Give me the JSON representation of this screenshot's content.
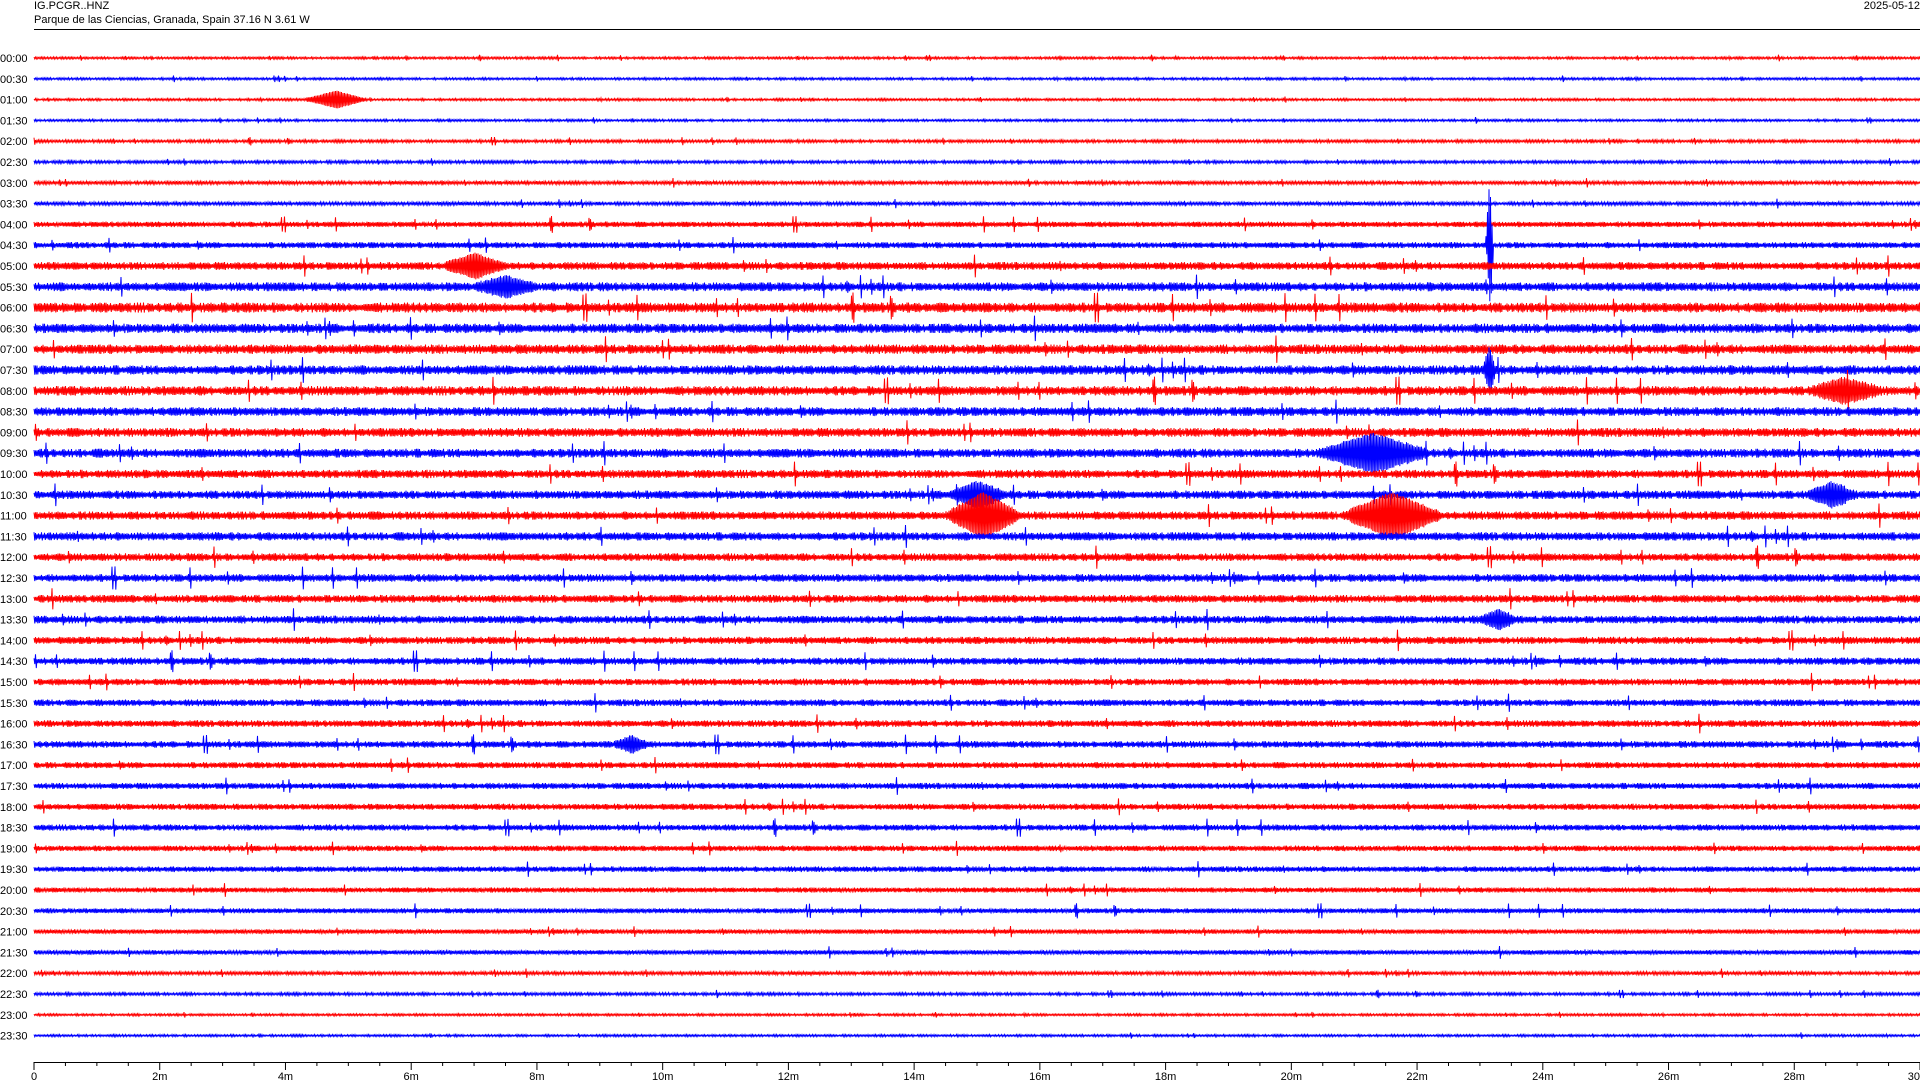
{
  "header": {
    "station": "IG.PCGR..HNZ",
    "location": "Parque de las Ciencias, Granada, Spain  37.16 N 3.61 W",
    "date": "2025-05-12"
  },
  "chart_data": {
    "type": "line",
    "title": "",
    "xlabel": "",
    "ylabel": "",
    "xlim": [
      0,
      30
    ],
    "x_ticks": [
      {
        "value": 0,
        "label": "0"
      },
      {
        "value": 2,
        "label": "2m"
      },
      {
        "value": 4,
        "label": "4m"
      },
      {
        "value": 6,
        "label": "6m"
      },
      {
        "value": 8,
        "label": "8m"
      },
      {
        "value": 10,
        "label": "10m"
      },
      {
        "value": 12,
        "label": "12m"
      },
      {
        "value": 14,
        "label": "14m"
      },
      {
        "value": 16,
        "label": "16m"
      },
      {
        "value": 18,
        "label": "18m"
      },
      {
        "value": 20,
        "label": "20m"
      },
      {
        "value": 22,
        "label": "22m"
      },
      {
        "value": 24,
        "label": "24m"
      },
      {
        "value": 26,
        "label": "26m"
      },
      {
        "value": 28,
        "label": "28m"
      },
      {
        "value": 30,
        "label": "30"
      }
    ],
    "colors": {
      "even_row": "#ff0000",
      "odd_row": "#0000ff"
    },
    "grid": false,
    "rows": [
      "00:00",
      "00:30",
      "01:00",
      "01:30",
      "02:00",
      "02:30",
      "03:00",
      "03:30",
      "04:00",
      "04:30",
      "05:00",
      "05:30",
      "06:00",
      "06:30",
      "07:00",
      "07:30",
      "08:00",
      "08:30",
      "09:00",
      "09:30",
      "10:00",
      "10:30",
      "11:00",
      "11:30",
      "12:00",
      "12:30",
      "13:00",
      "13:30",
      "14:00",
      "14:30",
      "15:00",
      "15:30",
      "16:00",
      "16:30",
      "17:00",
      "17:30",
      "18:00",
      "18:30",
      "19:00",
      "19:30",
      "20:00",
      "20:30",
      "21:00",
      "21:30",
      "22:00",
      "22:30",
      "23:00",
      "23:30"
    ],
    "noise_level": [
      0.2,
      0.2,
      0.2,
      0.2,
      0.25,
      0.25,
      0.3,
      0.3,
      0.5,
      0.55,
      0.7,
      0.8,
      0.9,
      0.85,
      0.85,
      0.85,
      0.85,
      0.8,
      0.8,
      0.8,
      0.75,
      0.75,
      0.75,
      0.75,
      0.7,
      0.7,
      0.7,
      0.7,
      0.65,
      0.65,
      0.6,
      0.6,
      0.6,
      0.6,
      0.55,
      0.55,
      0.55,
      0.55,
      0.5,
      0.5,
      0.45,
      0.45,
      0.4,
      0.4,
      0.3,
      0.25,
      0.2,
      0.2
    ],
    "events": [
      {
        "row": 2,
        "minute": 4.8,
        "amplitude": 2.0,
        "duration": 0.5
      },
      {
        "row": 10,
        "minute": 7.0,
        "amplitude": 2.5,
        "duration": 0.5
      },
      {
        "row": 11,
        "minute": 7.5,
        "amplitude": 2.0,
        "duration": 0.5
      },
      {
        "row": 9,
        "minute": 23.15,
        "amplitude": 15.0,
        "duration": 0.06
      },
      {
        "row": 15,
        "minute": 23.15,
        "amplitude": 5.0,
        "duration": 0.1
      },
      {
        "row": 22,
        "minute": 15.1,
        "amplitude": 5.0,
        "duration": 0.6
      },
      {
        "row": 21,
        "minute": 15.0,
        "amplitude": 2.5,
        "duration": 0.5
      },
      {
        "row": 22,
        "minute": 21.6,
        "amplitude": 5.0,
        "duration": 0.8
      },
      {
        "row": 19,
        "minute": 21.3,
        "amplitude": 4.0,
        "duration": 0.9
      },
      {
        "row": 16,
        "minute": 28.8,
        "amplitude": 2.5,
        "duration": 0.6
      },
      {
        "row": 21,
        "minute": 28.6,
        "amplitude": 2.5,
        "duration": 0.4
      },
      {
        "row": 27,
        "minute": 23.3,
        "amplitude": 1.8,
        "duration": 0.3
      },
      {
        "row": 33,
        "minute": 9.5,
        "amplitude": 1.6,
        "duration": 0.3
      }
    ]
  }
}
